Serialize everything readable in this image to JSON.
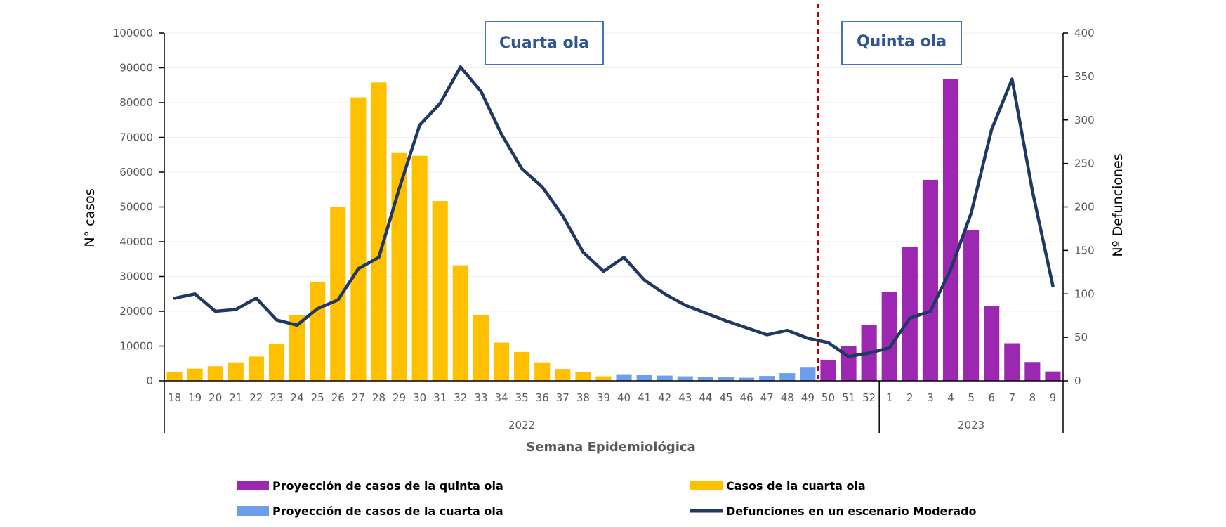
{
  "chart_data": {
    "type": "bar",
    "xlabel": "Semana Epidemiológica",
    "ylabel": "N° casos",
    "y2label": "Nº Defunciones",
    "ylim": [
      0,
      100000
    ],
    "y2lim": [
      0,
      400
    ],
    "yticks": [
      "0",
      "10000",
      "20000",
      "30000",
      "40000",
      "50000",
      "60000",
      "70000",
      "80000",
      "90000",
      "100000"
    ],
    "y2ticks": [
      "0",
      "50",
      "100",
      "150",
      "200",
      "250",
      "300",
      "350",
      "400"
    ],
    "categories": [
      "18",
      "19",
      "20",
      "21",
      "22",
      "23",
      "24",
      "25",
      "26",
      "27",
      "28",
      "29",
      "30",
      "31",
      "32",
      "33",
      "34",
      "35",
      "36",
      "37",
      "38",
      "39",
      "40",
      "41",
      "42",
      "43",
      "44",
      "45",
      "46",
      "47",
      "48",
      "49",
      "50",
      "51",
      "52",
      "1",
      "2",
      "3",
      "4",
      "5",
      "6",
      "7",
      "8",
      "9"
    ],
    "year_groups": [
      {
        "label": "2022",
        "start": 0,
        "end": 34
      },
      {
        "label": "2023",
        "start": 35,
        "end": 43
      }
    ],
    "series": [
      {
        "name": "Casos de la cuarta ola",
        "type": "bar",
        "color": "#ffc000",
        "values": [
          2500,
          3500,
          4200,
          5300,
          7000,
          10500,
          18800,
          28500,
          50000,
          81500,
          85800,
          65500,
          64700,
          51700,
          33200,
          19000,
          11000,
          8300,
          5300,
          3400,
          2600,
          1300,
          null,
          null,
          null,
          null,
          null,
          null,
          null,
          null,
          null,
          null,
          null,
          null,
          null,
          null,
          null,
          null,
          null,
          null,
          null,
          null,
          null,
          null
        ]
      },
      {
        "name": "Proyección de casos de la cuarta ola",
        "type": "bar",
        "color": "#6d9eeb",
        "values": [
          null,
          null,
          null,
          null,
          null,
          null,
          null,
          null,
          null,
          null,
          null,
          null,
          null,
          null,
          null,
          null,
          null,
          null,
          null,
          null,
          null,
          null,
          1900,
          1700,
          1500,
          1300,
          1100,
          1000,
          900,
          1400,
          2200,
          3800,
          null,
          null,
          null,
          null,
          null,
          null,
          null,
          null,
          null,
          null,
          null,
          null
        ]
      },
      {
        "name": "Proyección de casos de la quinta ola",
        "type": "bar",
        "color": "#9c27b0",
        "values": [
          null,
          null,
          null,
          null,
          null,
          null,
          null,
          null,
          null,
          null,
          null,
          null,
          null,
          null,
          null,
          null,
          null,
          null,
          null,
          null,
          null,
          null,
          null,
          null,
          null,
          null,
          null,
          null,
          null,
          null,
          null,
          null,
          6000,
          10000,
          16100,
          25500,
          38500,
          57800,
          86700,
          43300,
          21600,
          10800,
          5400,
          2700
        ]
      },
      {
        "name": "Defunciones en un escenario Moderado",
        "type": "line",
        "axis": "right",
        "color": "#1f3864",
        "values": [
          95,
          100,
          80,
          82,
          95,
          70,
          64,
          83,
          93,
          129,
          142,
          221,
          294,
          319,
          361,
          333,
          284,
          244,
          223,
          190,
          148,
          126,
          142,
          116,
          100,
          87,
          78,
          69,
          61,
          53,
          58,
          49,
          44,
          28,
          32,
          38,
          72,
          80,
          128,
          193,
          289,
          347,
          218,
          109
        ]
      }
    ],
    "annotations": [
      {
        "text": "Cuarta ola"
      },
      {
        "text": "Quinta ola"
      }
    ],
    "divider_after_category": "49",
    "legend": {
      "placement": "bottom",
      "items": [
        {
          "label": "Proyección de casos de la quinta ola",
          "color": "#9c27b0",
          "kind": "bar"
        },
        {
          "label": "Casos de la cuarta ola",
          "color": "#ffc000",
          "kind": "bar"
        },
        {
          "label": "Proyección de casos de la cuarta ola",
          "color": "#6d9eeb",
          "kind": "bar"
        },
        {
          "label": "Defunciones en un escenario Moderado",
          "color": "#1f3864",
          "kind": "line"
        }
      ]
    }
  }
}
